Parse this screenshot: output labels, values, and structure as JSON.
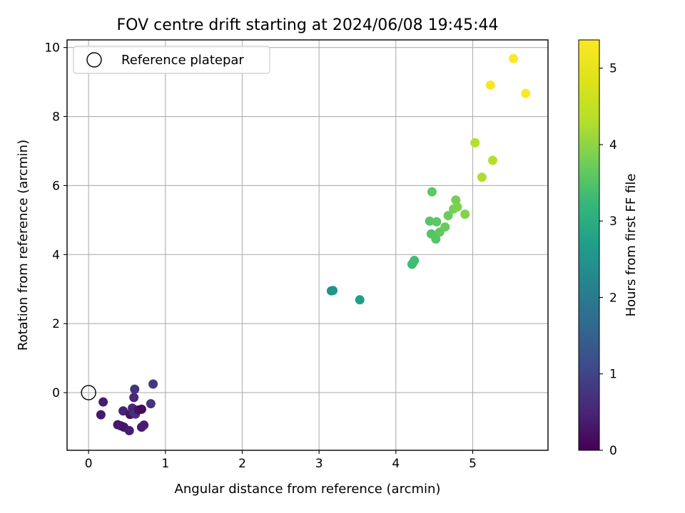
{
  "chart_data": {
    "type": "scatter",
    "title": "FOV centre drift starting at 2024/06/08 19:45:44",
    "xlabel": "Angular distance from reference (arcmin)",
    "ylabel": "Rotation from reference (arcmin)",
    "xlim": [
      -0.28,
      5.98
    ],
    "ylim": [
      -1.67,
      10.22
    ],
    "x_ticks": [
      0,
      1,
      2,
      3,
      4,
      5
    ],
    "y_ticks": [
      0,
      2,
      4,
      6,
      8,
      10
    ],
    "grid": true,
    "legend": {
      "placement": "top-left",
      "entries": [
        "Reference platepar"
      ]
    },
    "reference_point": {
      "x": 0,
      "y": 0
    },
    "colorbar": {
      "label": "Hours from first FF file",
      "colormap": "viridis",
      "range": [
        0,
        5.37
      ],
      "ticks": [
        0,
        1,
        2,
        3,
        4,
        5
      ]
    },
    "series": [
      {
        "points": [
          {
            "x": 0.16,
            "y": -0.64,
            "c": 0.35
          },
          {
            "x": 0.19,
            "y": -0.27,
            "c": 0.4
          },
          {
            "x": 0.38,
            "y": -0.93,
            "c": 0.3
          },
          {
            "x": 0.42,
            "y": -0.96,
            "c": 0.35
          },
          {
            "x": 0.45,
            "y": -0.53,
            "c": 0.45
          },
          {
            "x": 0.46,
            "y": -1.0,
            "c": 0.3
          },
          {
            "x": 0.53,
            "y": -1.1,
            "c": 0.4
          },
          {
            "x": 0.54,
            "y": -0.63,
            "c": 0.2
          },
          {
            "x": 0.57,
            "y": -0.45,
            "c": 0.6
          },
          {
            "x": 0.58,
            "y": -0.55,
            "c": 0.5
          },
          {
            "x": 0.59,
            "y": -0.14,
            "c": 0.55
          },
          {
            "x": 0.6,
            "y": 0.1,
            "c": 0.7
          },
          {
            "x": 0.61,
            "y": -0.62,
            "c": 0.65
          },
          {
            "x": 0.65,
            "y": -0.5,
            "c": 0.25
          },
          {
            "x": 0.69,
            "y": -0.48,
            "c": 0.15
          },
          {
            "x": 0.69,
            "y": -1.0,
            "c": 0.35
          },
          {
            "x": 0.72,
            "y": -0.94,
            "c": 0.4
          },
          {
            "x": 0.81,
            "y": -0.32,
            "c": 0.75
          },
          {
            "x": 0.84,
            "y": 0.25,
            "c": 0.85
          },
          {
            "x": 3.16,
            "y": 2.95,
            "c": 2.45
          },
          {
            "x": 3.18,
            "y": 2.96,
            "c": 2.5
          },
          {
            "x": 3.53,
            "y": 2.69,
            "c": 2.7
          },
          {
            "x": 4.21,
            "y": 3.72,
            "c": 3.3
          },
          {
            "x": 4.22,
            "y": 3.75,
            "c": 3.32
          },
          {
            "x": 4.24,
            "y": 3.83,
            "c": 3.35
          },
          {
            "x": 4.44,
            "y": 4.97,
            "c": 3.55
          },
          {
            "x": 4.46,
            "y": 4.6,
            "c": 3.5
          },
          {
            "x": 4.47,
            "y": 5.82,
            "c": 3.6
          },
          {
            "x": 4.52,
            "y": 4.45,
            "c": 3.55
          },
          {
            "x": 4.53,
            "y": 4.95,
            "c": 3.6
          },
          {
            "x": 4.57,
            "y": 4.65,
            "c": 3.6
          },
          {
            "x": 4.64,
            "y": 4.8,
            "c": 3.7
          },
          {
            "x": 4.68,
            "y": 5.13,
            "c": 3.7
          },
          {
            "x": 4.75,
            "y": 5.32,
            "c": 3.8
          },
          {
            "x": 4.78,
            "y": 5.58,
            "c": 3.8
          },
          {
            "x": 4.8,
            "y": 5.38,
            "c": 3.85
          },
          {
            "x": 4.9,
            "y": 5.17,
            "c": 3.9
          },
          {
            "x": 5.03,
            "y": 7.24,
            "c": 4.3
          },
          {
            "x": 5.12,
            "y": 6.24,
            "c": 4.25
          },
          {
            "x": 5.26,
            "y": 6.73,
            "c": 4.3
          },
          {
            "x": 5.23,
            "y": 8.91,
            "c": 5.3
          },
          {
            "x": 5.53,
            "y": 9.68,
            "c": 5.37
          },
          {
            "x": 5.69,
            "y": 8.67,
            "c": 5.35
          }
        ]
      }
    ]
  }
}
